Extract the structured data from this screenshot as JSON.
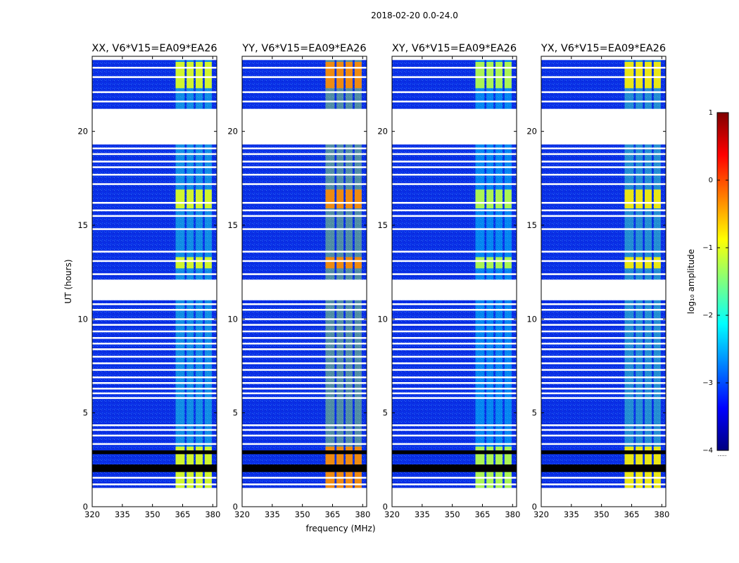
{
  "figure": {
    "suptitle": "2018-02-20 0.0-24.0"
  },
  "chart_data": {
    "type": "heatmap",
    "xlabel": "frequency (MHz)",
    "ylabel": "UT (hours)",
    "xlim": [
      320,
      382
    ],
    "ylim": [
      0,
      24
    ],
    "xticks": [
      320,
      335,
      350,
      365,
      380
    ],
    "xtick_labels": [
      "320",
      "335",
      "350",
      "365",
      "380"
    ],
    "yticks": [
      0,
      5,
      10,
      15,
      20
    ],
    "ytick_labels": [
      "0",
      "5",
      "10",
      "15",
      "20"
    ],
    "panels": [
      {
        "title": "XX, V6*V15=EA09*EA26",
        "pol": "XX",
        "band_level": 0.52
      },
      {
        "title": "YY, V6*V15=EA09*EA26",
        "pol": "YY",
        "band_level": 0.66
      },
      {
        "title": "XY, V6*V15=EA09*EA26",
        "pol": "XY",
        "band_level": 0.48
      },
      {
        "title": "YX, V6*V15=EA09*EA26",
        "pol": "YX",
        "band_level": 0.56
      }
    ],
    "flagged_ut_ranges": [
      [
        0,
        1.0
      ],
      [
        19.3,
        21.2
      ],
      [
        11.0,
        12.1
      ],
      [
        23.8,
        24.0
      ]
    ],
    "black_ut_ranges": [
      [
        1.85,
        2.25
      ],
      [
        2.8,
        3.0
      ]
    ],
    "gap_ut_rows": [
      1.2,
      1.55,
      3.35,
      3.8,
      4.1,
      4.35,
      5.8,
      6.05,
      6.3,
      6.6,
      6.9,
      7.3,
      7.65,
      8.0,
      8.4,
      8.7,
      9.0,
      9.35,
      9.7,
      10.0,
      10.5,
      10.8,
      11.4,
      12.4,
      13.1,
      13.6,
      14.8,
      15.5,
      15.8,
      16.2,
      17.2,
      17.7,
      18.1,
      18.4,
      18.8,
      19.1,
      21.6,
      22.1,
      22.9,
      23.4
    ],
    "bright_channel_freq_mhz": [
      [
        361.5,
        366.0
      ],
      [
        367.0,
        370.5
      ],
      [
        371.5,
        375.0
      ],
      [
        376.0,
        379.5
      ]
    ],
    "bright_ut_ranges": [
      [
        1.0,
        3.2
      ],
      [
        15.9,
        16.9
      ],
      [
        12.7,
        13.3
      ],
      [
        22.3,
        23.7
      ]
    ],
    "colorbar": {
      "label": "log₁₀ amplitude",
      "range": [
        -4,
        1
      ],
      "ticks": [
        1,
        0,
        -1,
        -2,
        -3,
        -4
      ],
      "tick_labels": [
        "1",
        "0",
        "−1",
        "−2",
        "−3",
        "−4"
      ],
      "colormap": "jet",
      "footer": "....."
    }
  }
}
